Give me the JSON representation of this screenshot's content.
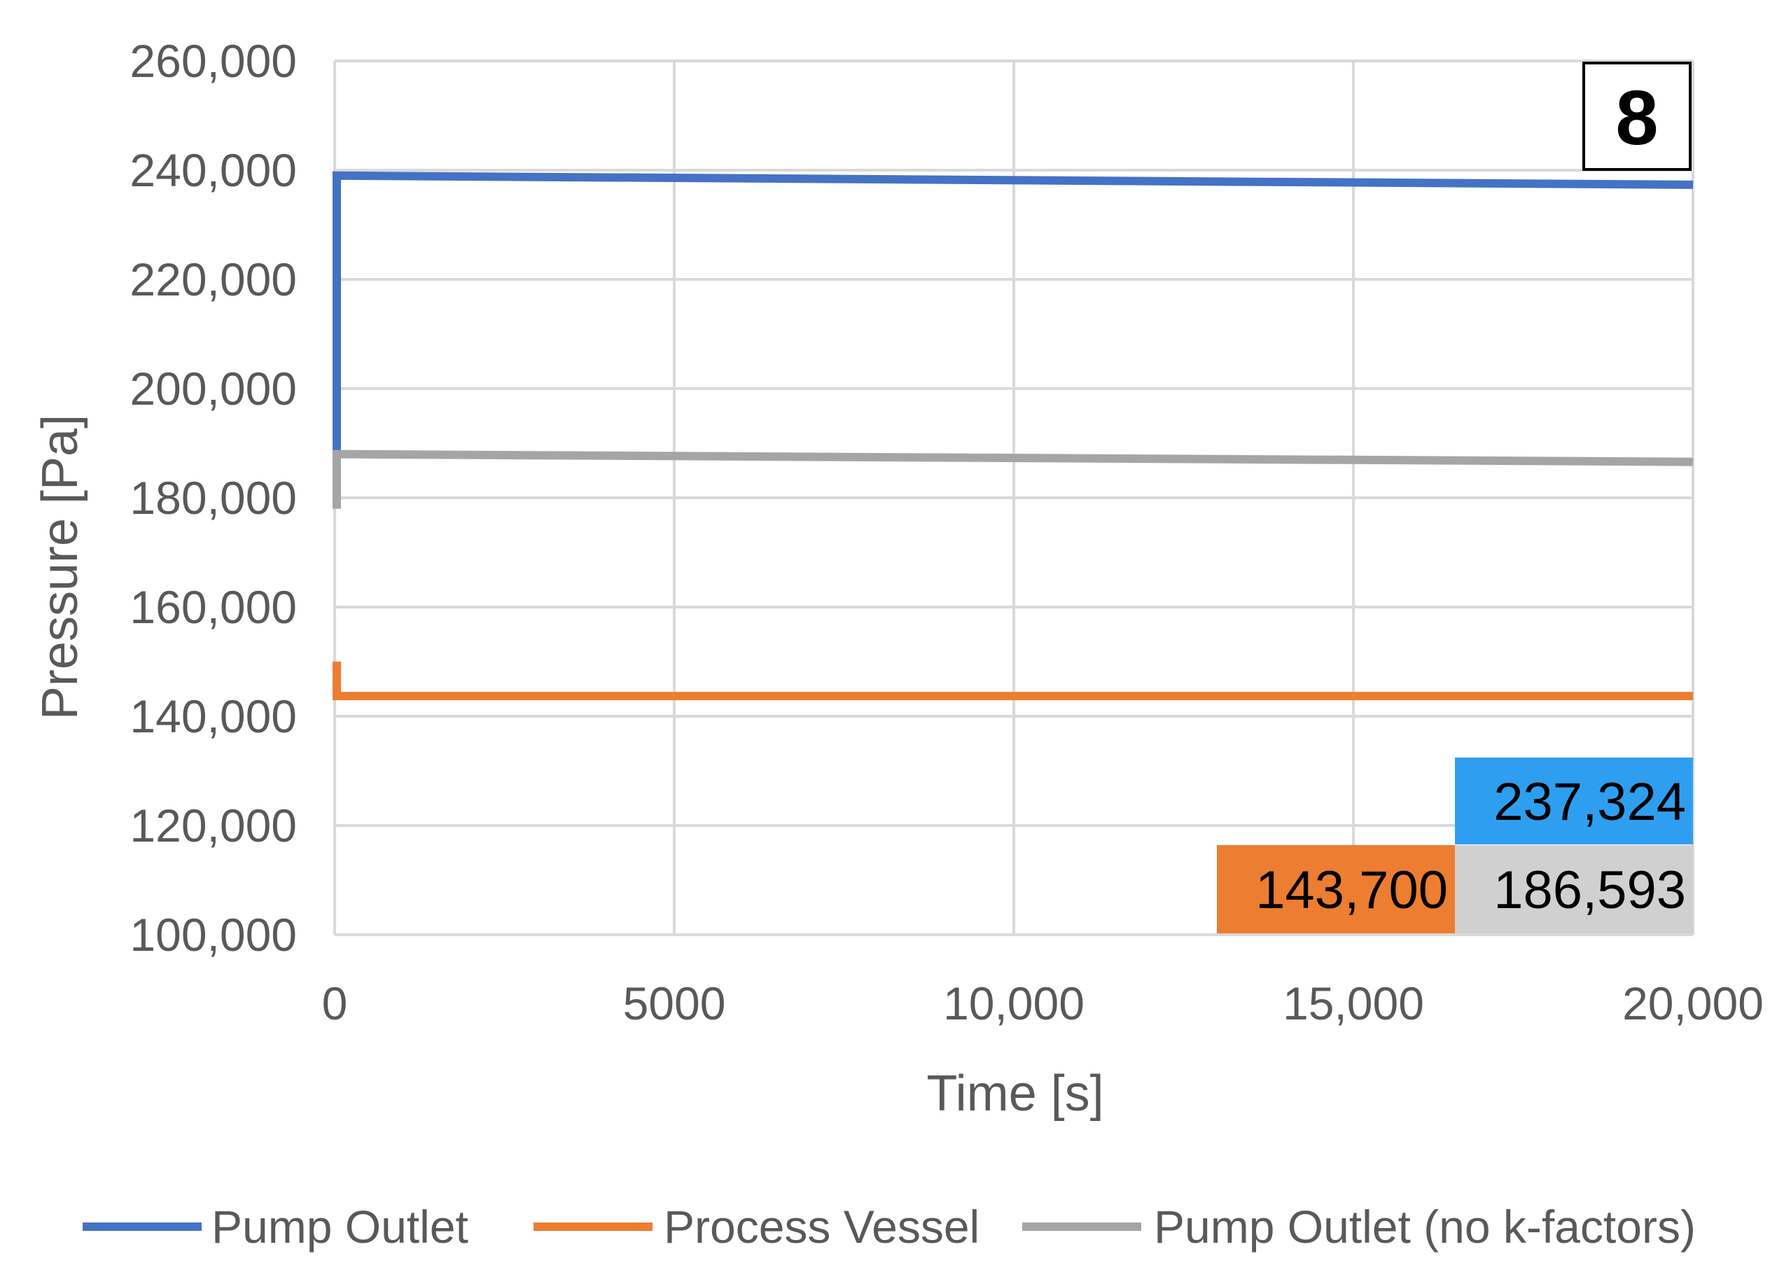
{
  "chart_data": {
    "type": "line",
    "title": "",
    "xlabel": "Time [s]",
    "ylabel": "Pressure [Pa]",
    "xlim": [
      0,
      20000
    ],
    "ylim": [
      100000,
      260000
    ],
    "x_ticks": [
      0,
      5000,
      10000,
      15000,
      20000
    ],
    "x_tick_labels": [
      "0",
      "5000",
      "10,000",
      "15,000",
      "20,000"
    ],
    "y_ticks": [
      100000,
      120000,
      140000,
      160000,
      180000,
      200000,
      220000,
      240000,
      260000
    ],
    "y_tick_labels": [
      "100,000",
      "120,000",
      "140,000",
      "160,000",
      "180,000",
      "200,000",
      "220,000",
      "240,000",
      "260,000"
    ],
    "grid": true,
    "legend_position": "bottom",
    "panel_label": "8",
    "series": [
      {
        "name": "Pump Outlet",
        "color": "#4472c4",
        "x": [
          0,
          0,
          20000
        ],
        "y": [
          188000,
          239000,
          237324
        ]
      },
      {
        "name": "Process Vessel",
        "color": "#ed7d31",
        "x": [
          0,
          0,
          20000
        ],
        "y": [
          150000,
          143700,
          143700
        ]
      },
      {
        "name": "Pump Outlet (no k-factors)",
        "color": "#a5a5a5",
        "x": [
          0,
          0,
          20000
        ],
        "y": [
          178000,
          188000,
          186593
        ]
      }
    ],
    "annotations": [
      {
        "text": "237,324",
        "fill": "#2e9ff0",
        "series": "Pump Outlet"
      },
      {
        "text": "143,700",
        "fill": "#ed7d31",
        "series": "Process Vessel"
      },
      {
        "text": "186,593",
        "fill": "#d0d0d0",
        "series": "Pump Outlet (no k-factors)"
      }
    ]
  }
}
